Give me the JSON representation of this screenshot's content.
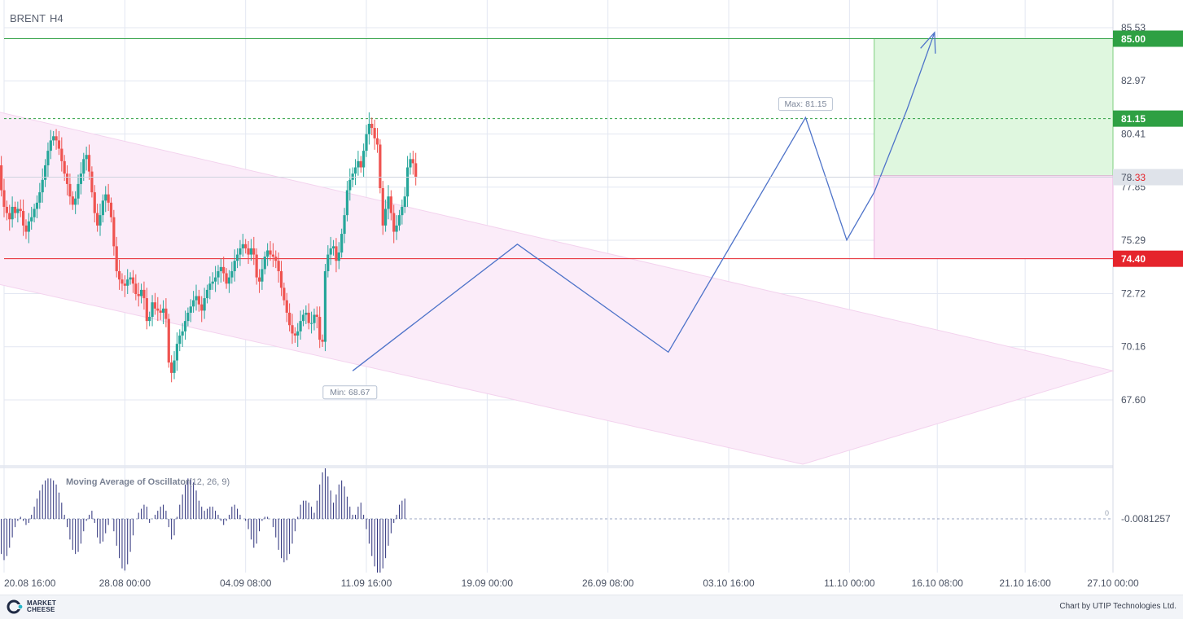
{
  "header": {
    "symbol": "BRENT",
    "timeframe": "H4"
  },
  "chart_data": {
    "type": "candlestick",
    "symbol": "BRENT",
    "timeframe": "H4",
    "price_axis": {
      "min": 64.5,
      "max": 86.0,
      "ticks": [
        "85.53",
        "82.97",
        "80.41",
        "77.85",
        "75.29",
        "72.72",
        "70.16",
        "67.60"
      ]
    },
    "time_axis": {
      "range": [
        "2024-08-20 16:00",
        "2024-10-27 00:00"
      ],
      "ticks": [
        "20.08 16:00",
        "28.08 00:00",
        "04.09 08:00",
        "11.09 16:00",
        "19.09 00:00",
        "26.09 08:00",
        "03.10 16:00",
        "11.10 00:00",
        "16.10 08:00",
        "21.10 16:00",
        "27.10 00:00"
      ]
    },
    "current_price": {
      "label_main": "78.",
      "label_tail": "33",
      "value": 78.33
    },
    "levels": [
      {
        "name": "target",
        "value": 85.0,
        "label": "85.00",
        "color": "#2ea043"
      },
      {
        "name": "max-level",
        "value": 81.15,
        "label": "81.15",
        "color": "#2ea043",
        "dashed": true
      },
      {
        "name": "stop",
        "value": 74.4,
        "label": "74.40",
        "color": "#e5242c"
      }
    ],
    "annotations": {
      "max": {
        "text": "Max: 81.15",
        "value": 81.15,
        "date": "2024-10-08 08:00"
      },
      "min": {
        "text": "Min: 68.67",
        "value": 68.67,
        "date": "2024-09-10 16:00"
      }
    },
    "candles": {
      "source": "estimated from screenshot (sampled closes)",
      "start": "2024-08-20 04:00",
      "interval_hours": 4,
      "closes": [
        79.6,
        78.9,
        77.7,
        76.9,
        76.6,
        76.3,
        76.9,
        76.6,
        76.8,
        76.7,
        76.0,
        75.7,
        76.2,
        76.4,
        76.8,
        77.1,
        77.6,
        78.2,
        78.9,
        79.6,
        80.1,
        80.3,
        80.1,
        79.7,
        79.1,
        78.5,
        78.0,
        77.4,
        77.0,
        77.3,
        78.0,
        78.5,
        79.2,
        79.4,
        78.6,
        77.6,
        76.6,
        76.0,
        76.5,
        77.2,
        77.5,
        77.1,
        76.4,
        75.0,
        73.8,
        73.4,
        73.2,
        73.1,
        73.4,
        73.5,
        73.2,
        72.7,
        72.6,
        72.9,
        72.5,
        71.4,
        71.6,
        72.3,
        72.0,
        71.9,
        71.8,
        72.0,
        71.5,
        69.4,
        68.9,
        69.5,
        70.3,
        70.7,
        70.9,
        71.4,
        71.8,
        72.1,
        72.4,
        72.6,
        72.2,
        71.9,
        72.5,
        72.9,
        73.2,
        73.3,
        73.5,
        73.8,
        74.0,
        73.7,
        73.2,
        73.5,
        73.8,
        74.3,
        74.6,
        74.9,
        75.1,
        74.9,
        74.6,
        74.9,
        74.6,
        73.5,
        73.3,
        73.9,
        74.5,
        74.8,
        74.6,
        74.5,
        74.3,
        73.8,
        73.0,
        72.4,
        71.8,
        71.2,
        70.8,
        70.7,
        70.9,
        71.4,
        71.7,
        71.8,
        71.3,
        71.3,
        71.7,
        71.6,
        70.5,
        70.4,
        73.8,
        74.6,
        74.9,
        75.0,
        74.3,
        74.7,
        75.6,
        76.5,
        77.7,
        78.2,
        78.5,
        78.8,
        79.1,
        78.8,
        79.6,
        80.4,
        80.9,
        80.7,
        80.2,
        79.9,
        77.8,
        76.0,
        76.8,
        77.4,
        76.6,
        75.7,
        76.0,
        76.5,
        76.9,
        77.4,
        78.8,
        79.2,
        79.0,
        78.33
      ]
    },
    "wave_path": [
      {
        "date": "2024-09-10 20:00",
        "value": 69.0
      },
      {
        "date": "2024-09-20 20:00",
        "value": 75.1
      },
      {
        "date": "2024-09-30 00:00",
        "value": 69.9
      },
      {
        "date": "2024-10-08 08:00",
        "value": 81.2
      },
      {
        "date": "2024-10-10 20:00",
        "value": 75.3
      },
      {
        "date": "2024-10-12 12:00",
        "value": 77.6
      },
      {
        "date": "2024-10-14 12:00",
        "value": 81.6
      },
      {
        "date": "2024-10-16 04:00",
        "value": 85.3
      }
    ],
    "channel": {
      "upper": [
        {
          "date": "2024-08-20 04:00",
          "value": 81.5
        },
        {
          "date": "2024-10-27 00:00",
          "value": 69.0
        }
      ],
      "lower": [
        {
          "date": "2024-08-20 04:00",
          "value": 73.2
        },
        {
          "date": "2024-10-08 04:00",
          "value": 64.5
        }
      ]
    },
    "position_box": {
      "start": "2024-10-12 12:00",
      "end": "2024-10-27 00:00",
      "entry": 78.4,
      "take_profit": 85.0,
      "stop_loss": 74.4
    },
    "oscillator": {
      "title": "Moving Average of Oscillator",
      "params": "(12, 26, 9)",
      "current_label": "-0.0081257",
      "zero_label": "0",
      "min": -1.3,
      "max": 1.25,
      "values": [
        -0.45,
        -0.7,
        -0.85,
        -1.0,
        -0.9,
        -0.7,
        -0.45,
        -0.2,
        -0.05,
        0.05,
        -0.05,
        -0.15,
        -0.1,
        0.1,
        0.3,
        0.5,
        0.7,
        0.85,
        0.95,
        1.0,
        1.0,
        0.95,
        0.85,
        0.65,
        0.4,
        0.1,
        -0.2,
        -0.5,
        -0.75,
        -0.85,
        -0.8,
        -0.6,
        -0.3,
        -0.05,
        0.1,
        0.2,
        -0.1,
        -0.45,
        -0.6,
        -0.55,
        -0.35,
        -0.15,
        0.0,
        -0.3,
        -0.65,
        -0.95,
        -1.2,
        -1.25,
        -1.1,
        -0.8,
        -0.4,
        0.0,
        0.15,
        0.25,
        0.35,
        0.3,
        -0.1,
        0.0,
        0.1,
        0.2,
        0.3,
        0.35,
        0.2,
        -0.2,
        -0.5,
        -0.4,
        0.05,
        0.35,
        0.6,
        0.85,
        1.0,
        1.0,
        0.9,
        0.7,
        0.45,
        0.3,
        0.2,
        0.25,
        0.3,
        0.3,
        0.2,
        0.1,
        -0.05,
        -0.15,
        -0.05,
        0.1,
        0.3,
        0.35,
        0.25,
        0.1,
        0.0,
        -0.05,
        -0.25,
        -0.5,
        -0.7,
        -0.6,
        -0.3,
        -0.05,
        0.05,
        0.05,
        0.0,
        -0.2,
        -0.45,
        -0.75,
        -0.95,
        -1.05,
        -1.0,
        -0.85,
        -0.6,
        -0.3,
        0.05,
        0.35,
        0.45,
        0.45,
        0.4,
        0.3,
        0.15,
        0.45,
        0.85,
        1.15,
        1.25,
        1.05,
        0.7,
        0.4,
        0.6,
        0.85,
        0.95,
        0.8,
        0.55,
        0.3,
        0.1,
        0.1,
        0.3,
        0.4,
        0.1,
        -0.25,
        -0.6,
        -0.9,
        -1.15,
        -1.3,
        -1.3,
        -1.2,
        -0.95,
        -0.65,
        -0.35,
        -0.1,
        0.1,
        0.35,
        0.45,
        0.5
      ]
    },
    "grid": true
  },
  "colors": {
    "bull": "#26a69a",
    "bear": "#ef5350",
    "wave": "#4e73c9",
    "oscillator": "#2b2f7a",
    "grid": "#e3e7f2",
    "channel": "#fbecf9",
    "tp_zone": "#dff7df",
    "sl_zone": "#fbe6f6"
  },
  "footer": {
    "brand_line1": "MARKET",
    "brand_line2": "CHEESE",
    "credit": "Chart by UTIP Technologies Ltd."
  }
}
